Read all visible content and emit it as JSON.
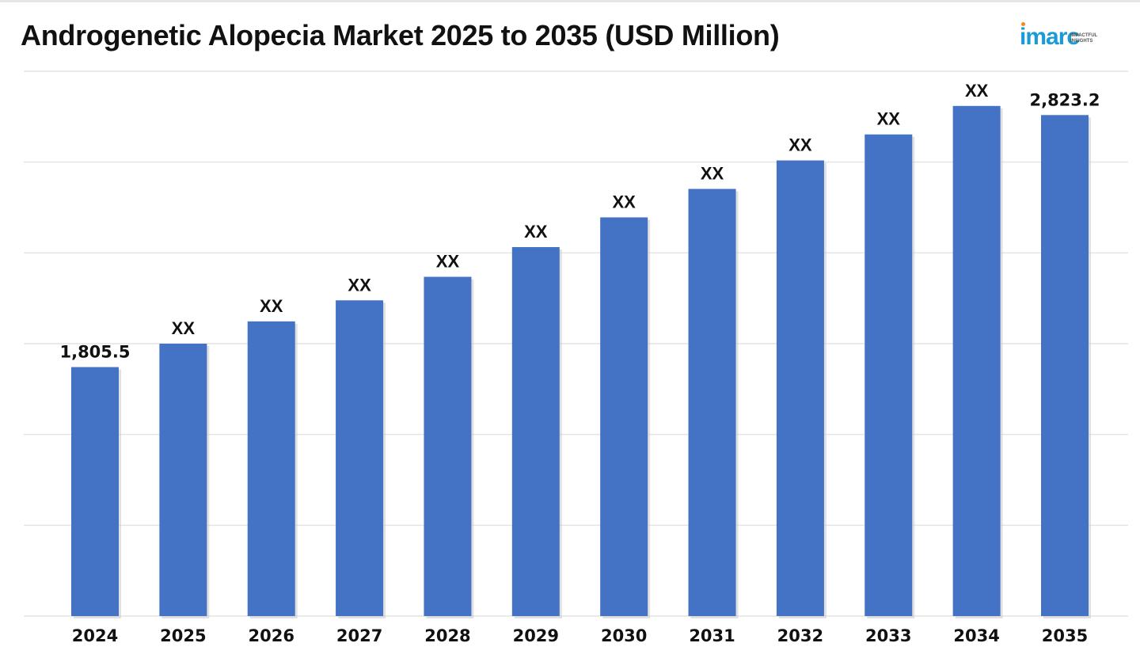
{
  "title": "Androgenetic Alopecia Market 2025 to 2035 (USD Million)",
  "logo": {
    "word": "imarc",
    "tagline": "IMPACTFUL INSIGHTS"
  },
  "colors": {
    "bar": "#4472c4",
    "grid": "#e4e4e4",
    "text": "#111111"
  },
  "chart_data": {
    "type": "bar",
    "title": "Androgenetic Alopecia Market 2025 to 2035 (USD Million)",
    "xlabel": "",
    "ylabel": "",
    "categories": [
      "2024",
      "2025",
      "2026",
      "2027",
      "2028",
      "2029",
      "2030",
      "2031",
      "2032",
      "2033",
      "2034",
      "2035"
    ],
    "values": [
      1805.5,
      1900,
      1990,
      2075,
      2170,
      2290,
      2410,
      2525,
      2640,
      2745,
      2860,
      2823.2
    ],
    "labels": [
      "1,805.5",
      "XX",
      "XX",
      "XX",
      "XX",
      "XX",
      "XX",
      "XX",
      "XX",
      "XX",
      "XX",
      "2,823.2"
    ],
    "ylim": [
      800,
      3000
    ],
    "grid": true,
    "legend": "none"
  }
}
